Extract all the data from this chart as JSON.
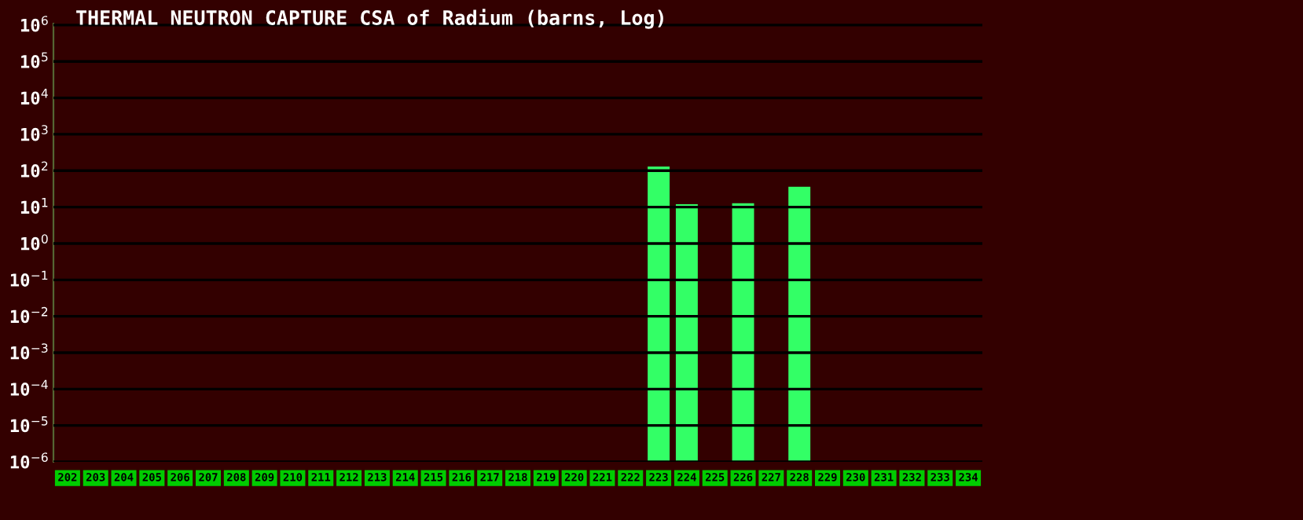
{
  "chart_data": {
    "type": "bar",
    "title": "THERMAL NEUTRON CAPTURE CSA of Radium (barns, Log)",
    "categories": [
      "202",
      "203",
      "204",
      "205",
      "206",
      "207",
      "208",
      "209",
      "210",
      "211",
      "212",
      "213",
      "214",
      "215",
      "216",
      "217",
      "218",
      "219",
      "220",
      "221",
      "222",
      "223",
      "224",
      "225",
      "226",
      "227",
      "228",
      "229",
      "230",
      "231",
      "232",
      "233",
      "234"
    ],
    "values": [
      null,
      null,
      null,
      null,
      null,
      null,
      null,
      null,
      null,
      null,
      null,
      null,
      null,
      null,
      null,
      null,
      null,
      null,
      null,
      null,
      null,
      130,
      12,
      null,
      12.8,
      null,
      36,
      null,
      null,
      null,
      null,
      null,
      null
    ],
    "color": "#33ff66",
    "log": "y",
    "ylim": [
      1e-06,
      1000000.0
    ],
    "yticks": [
      {
        "value": 1e-06,
        "label": "10$^{−6}$"
      },
      {
        "value": 1e-05,
        "label": "10$^{−5}$"
      },
      {
        "value": 0.0001,
        "label": "10$^{−4}$"
      },
      {
        "value": 0.001,
        "label": "10$^{−3}$"
      },
      {
        "value": 0.01,
        "label": "10$^{−2}$"
      },
      {
        "value": 0.1,
        "label": "10$^{−1}$"
      },
      {
        "value": 1,
        "label": "10$^{0}$"
      },
      {
        "value": 10,
        "label": "10$^{1}$"
      },
      {
        "value": 100,
        "label": "10$^{2}$"
      },
      {
        "value": 1000,
        "label": "10$^{3}$"
      },
      {
        "value": 10000,
        "label": "10$^{4}$"
      },
      {
        "value": 100000,
        "label": "10$^{5}$"
      },
      {
        "value": 1000000,
        "label": "10$^{6}$"
      }
    ],
    "grid": "y"
  }
}
